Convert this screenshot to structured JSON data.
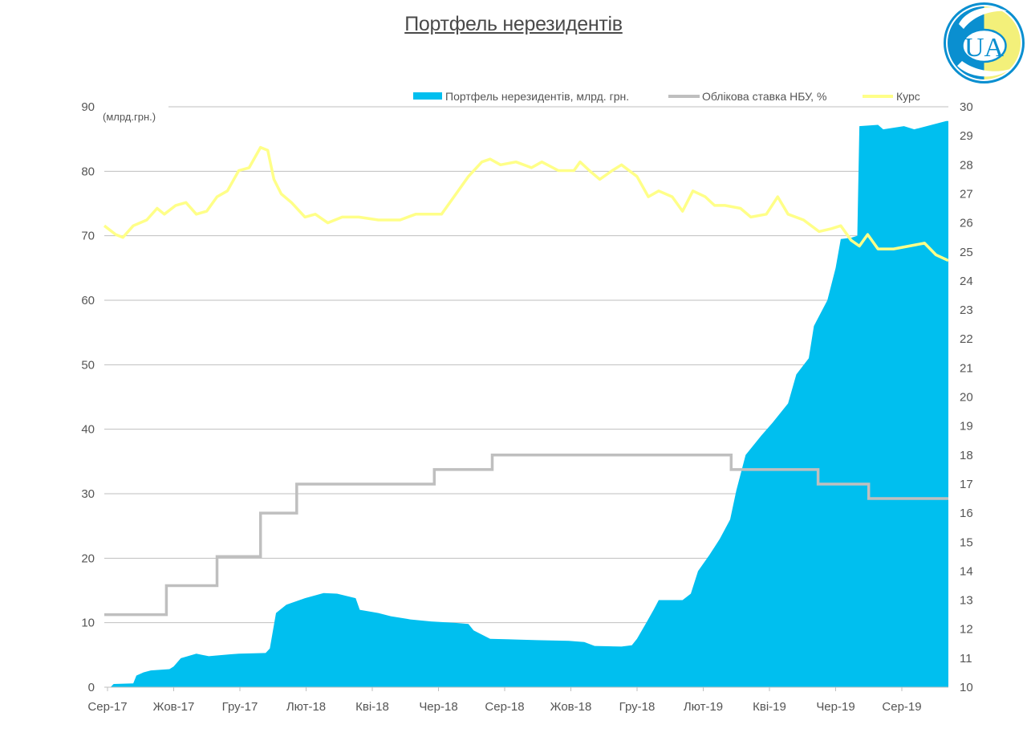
{
  "chart_data": {
    "type": "area",
    "title": "Портфель нерезидентів",
    "y_unit_note": "(млрд.грн.)",
    "x_tick_labels": [
      "Сер-17",
      "Жов-17",
      "Гру-17",
      "Лют-18",
      "Кві-18",
      "Чер-18",
      "Сер-18",
      "Жов-18",
      "Гру-18",
      "Лют-19",
      "Кві-19",
      "Чер-19",
      "Сер-19"
    ],
    "x_range": [
      "2017-08-28",
      "2019-11-22"
    ],
    "y_left": {
      "min": 0,
      "max": 90,
      "ticks": [
        "0",
        "10",
        "20",
        "30",
        "40",
        "50",
        "60",
        "70",
        "80",
        "90"
      ]
    },
    "y_right": {
      "min": 10,
      "max": 30,
      "ticks": [
        "10",
        "11",
        "12",
        "13",
        "14",
        "15",
        "16",
        "17",
        "18",
        "19",
        "20",
        "21",
        "22",
        "23",
        "24",
        "25",
        "26",
        "27",
        "28",
        "29",
        "30"
      ]
    },
    "grid": "horizontal",
    "legend_position": "top-right",
    "series": [
      {
        "name": "Портфель нерезидентів, млрд. грн.",
        "kind": "area",
        "axis": "left",
        "color": "#00BFEF",
        "points": [
          [
            "2017-08-28",
            0
          ],
          [
            "2017-09-03",
            0
          ],
          [
            "2017-09-06",
            0.5
          ],
          [
            "2017-09-25",
            0.6
          ],
          [
            "2017-09-28",
            1.8
          ],
          [
            "2017-10-05",
            2.3
          ],
          [
            "2017-10-12",
            2.6
          ],
          [
            "2017-10-30",
            2.8
          ],
          [
            "2017-11-03",
            3.2
          ],
          [
            "2017-11-10",
            4.5
          ],
          [
            "2017-11-25",
            5.2
          ],
          [
            "2017-12-07",
            4.8
          ],
          [
            "2017-12-28",
            5.1
          ],
          [
            "2018-01-05",
            5.2
          ],
          [
            "2018-01-31",
            5.3
          ],
          [
            "2018-02-04",
            6
          ],
          [
            "2018-02-10",
            11.5
          ],
          [
            "2018-02-20",
            12.8
          ],
          [
            "2018-03-10",
            13.8
          ],
          [
            "2018-03-28",
            14.6
          ],
          [
            "2018-04-10",
            14.5
          ],
          [
            "2018-04-28",
            13.8
          ],
          [
            "2018-05-02",
            12
          ],
          [
            "2018-05-20",
            11.5
          ],
          [
            "2018-06-01",
            11
          ],
          [
            "2018-06-20",
            10.5
          ],
          [
            "2018-07-10",
            10.2
          ],
          [
            "2018-08-01",
            10
          ],
          [
            "2018-08-15",
            9.8
          ],
          [
            "2018-08-20",
            8.8
          ],
          [
            "2018-09-05",
            7.5
          ],
          [
            "2018-09-30",
            7.4
          ],
          [
            "2018-10-20",
            7.3
          ],
          [
            "2018-11-20",
            7.2
          ],
          [
            "2018-12-05",
            7
          ],
          [
            "2018-12-15",
            6.4
          ],
          [
            "2019-01-10",
            6.3
          ],
          [
            "2019-01-20",
            6.5
          ],
          [
            "2019-01-25",
            7.5
          ],
          [
            "2019-02-03",
            10
          ],
          [
            "2019-02-10",
            12
          ],
          [
            "2019-02-15",
            13.5
          ],
          [
            "2019-03-10",
            13.5
          ],
          [
            "2019-03-18",
            14.5
          ],
          [
            "2019-03-25",
            18
          ],
          [
            "2019-04-05",
            20.5
          ],
          [
            "2019-04-15",
            23
          ],
          [
            "2019-04-25",
            26
          ],
          [
            "2019-05-01",
            30.5
          ],
          [
            "2019-05-10",
            36
          ],
          [
            "2019-05-25",
            39
          ],
          [
            "2019-06-05",
            41
          ],
          [
            "2019-06-20",
            44
          ],
          [
            "2019-06-28",
            48.5
          ],
          [
            "2019-07-10",
            51
          ],
          [
            "2019-07-15",
            56
          ],
          [
            "2019-07-28",
            60
          ],
          [
            "2019-08-05",
            65
          ],
          [
            "2019-08-10",
            69.5
          ],
          [
            "2019-08-20",
            69.7
          ],
          [
            "2019-08-26",
            70
          ],
          [
            "2019-08-28",
            87
          ],
          [
            "2019-09-15",
            87.2
          ],
          [
            "2019-09-20",
            86.5
          ],
          [
            "2019-10-10",
            87
          ],
          [
            "2019-10-20",
            86.5
          ],
          [
            "2019-11-20",
            87.8
          ],
          [
            "2019-11-22",
            87.8
          ]
        ]
      },
      {
        "name": "Облікова ставка НБУ, %",
        "kind": "step",
        "axis": "right",
        "color": "#BFBFBF",
        "points": [
          [
            "2017-08-28",
            12.5
          ],
          [
            "2017-10-27",
            13.5
          ],
          [
            "2017-12-15",
            14.5
          ],
          [
            "2018-01-26",
            16
          ],
          [
            "2018-03-02",
            17
          ],
          [
            "2018-07-13",
            17.5
          ],
          [
            "2018-09-07",
            18
          ],
          [
            "2019-04-26",
            17.5
          ],
          [
            "2019-07-19",
            17
          ],
          [
            "2019-09-06",
            16.5
          ],
          [
            "2019-11-22",
            16.5
          ]
        ]
      },
      {
        "name": "Курс",
        "kind": "line",
        "axis": "right",
        "color": "#FFFF88",
        "points": [
          [
            "2017-08-28",
            25.9
          ],
          [
            "2017-09-08",
            25.6
          ],
          [
            "2017-09-15",
            25.5
          ],
          [
            "2017-09-25",
            25.9
          ],
          [
            "2017-10-08",
            26.1
          ],
          [
            "2017-10-18",
            26.5
          ],
          [
            "2017-10-25",
            26.3
          ],
          [
            "2017-11-05",
            26.6
          ],
          [
            "2017-11-15",
            26.7
          ],
          [
            "2017-11-25",
            26.3
          ],
          [
            "2017-12-05",
            26.4
          ],
          [
            "2017-12-15",
            26.9
          ],
          [
            "2017-12-25",
            27.1
          ],
          [
            "2018-01-05",
            27.8
          ],
          [
            "2018-01-15",
            27.9
          ],
          [
            "2018-01-26",
            28.6
          ],
          [
            "2018-02-02",
            28.5
          ],
          [
            "2018-02-08",
            27.5
          ],
          [
            "2018-02-15",
            27
          ],
          [
            "2018-02-25",
            26.7
          ],
          [
            "2018-03-10",
            26.2
          ],
          [
            "2018-03-20",
            26.3
          ],
          [
            "2018-04-01",
            26
          ],
          [
            "2018-04-15",
            26.2
          ],
          [
            "2018-05-01",
            26.2
          ],
          [
            "2018-05-20",
            26.1
          ],
          [
            "2018-06-10",
            26.1
          ],
          [
            "2018-06-25",
            26.3
          ],
          [
            "2018-07-10",
            26.3
          ],
          [
            "2018-07-20",
            26.3
          ],
          [
            "2018-08-01",
            26.9
          ],
          [
            "2018-08-15",
            27.6
          ],
          [
            "2018-08-28",
            28.1
          ],
          [
            "2018-09-05",
            28.2
          ],
          [
            "2018-09-15",
            28.0
          ],
          [
            "2018-09-30",
            28.1
          ],
          [
            "2018-10-15",
            27.9
          ],
          [
            "2018-10-25",
            28.1
          ],
          [
            "2018-11-10",
            27.8
          ],
          [
            "2018-11-25",
            27.8
          ],
          [
            "2018-12-01",
            28.1
          ],
          [
            "2018-12-10",
            27.8
          ],
          [
            "2018-12-20",
            27.5
          ],
          [
            "2019-01-01",
            27.8
          ],
          [
            "2019-01-10",
            28.0
          ],
          [
            "2019-01-25",
            27.6
          ],
          [
            "2019-02-05",
            26.9
          ],
          [
            "2019-02-15",
            27.1
          ],
          [
            "2019-02-28",
            26.9
          ],
          [
            "2019-03-10",
            26.4
          ],
          [
            "2019-03-20",
            27.1
          ],
          [
            "2019-04-01",
            26.9
          ],
          [
            "2019-04-10",
            26.6
          ],
          [
            "2019-04-20",
            26.6
          ],
          [
            "2019-05-05",
            26.5
          ],
          [
            "2019-05-15",
            26.2
          ],
          [
            "2019-05-30",
            26.3
          ],
          [
            "2019-06-10",
            26.9
          ],
          [
            "2019-06-20",
            26.3
          ],
          [
            "2019-07-05",
            26.1
          ],
          [
            "2019-07-20",
            25.7
          ],
          [
            "2019-08-01",
            25.8
          ],
          [
            "2019-08-10",
            25.9
          ],
          [
            "2019-08-20",
            25.4
          ],
          [
            "2019-08-28",
            25.2
          ],
          [
            "2019-09-05",
            25.6
          ],
          [
            "2019-09-15",
            25.1
          ],
          [
            "2019-09-30",
            25.1
          ],
          [
            "2019-10-15",
            25.2
          ],
          [
            "2019-10-30",
            25.3
          ],
          [
            "2019-11-10",
            24.9
          ],
          [
            "2019-11-22",
            24.7
          ]
        ]
      }
    ]
  },
  "logo": {
    "text": "UA",
    "colors": {
      "blue": "#0A8FD0",
      "yellow": "#F3F07A"
    }
  }
}
